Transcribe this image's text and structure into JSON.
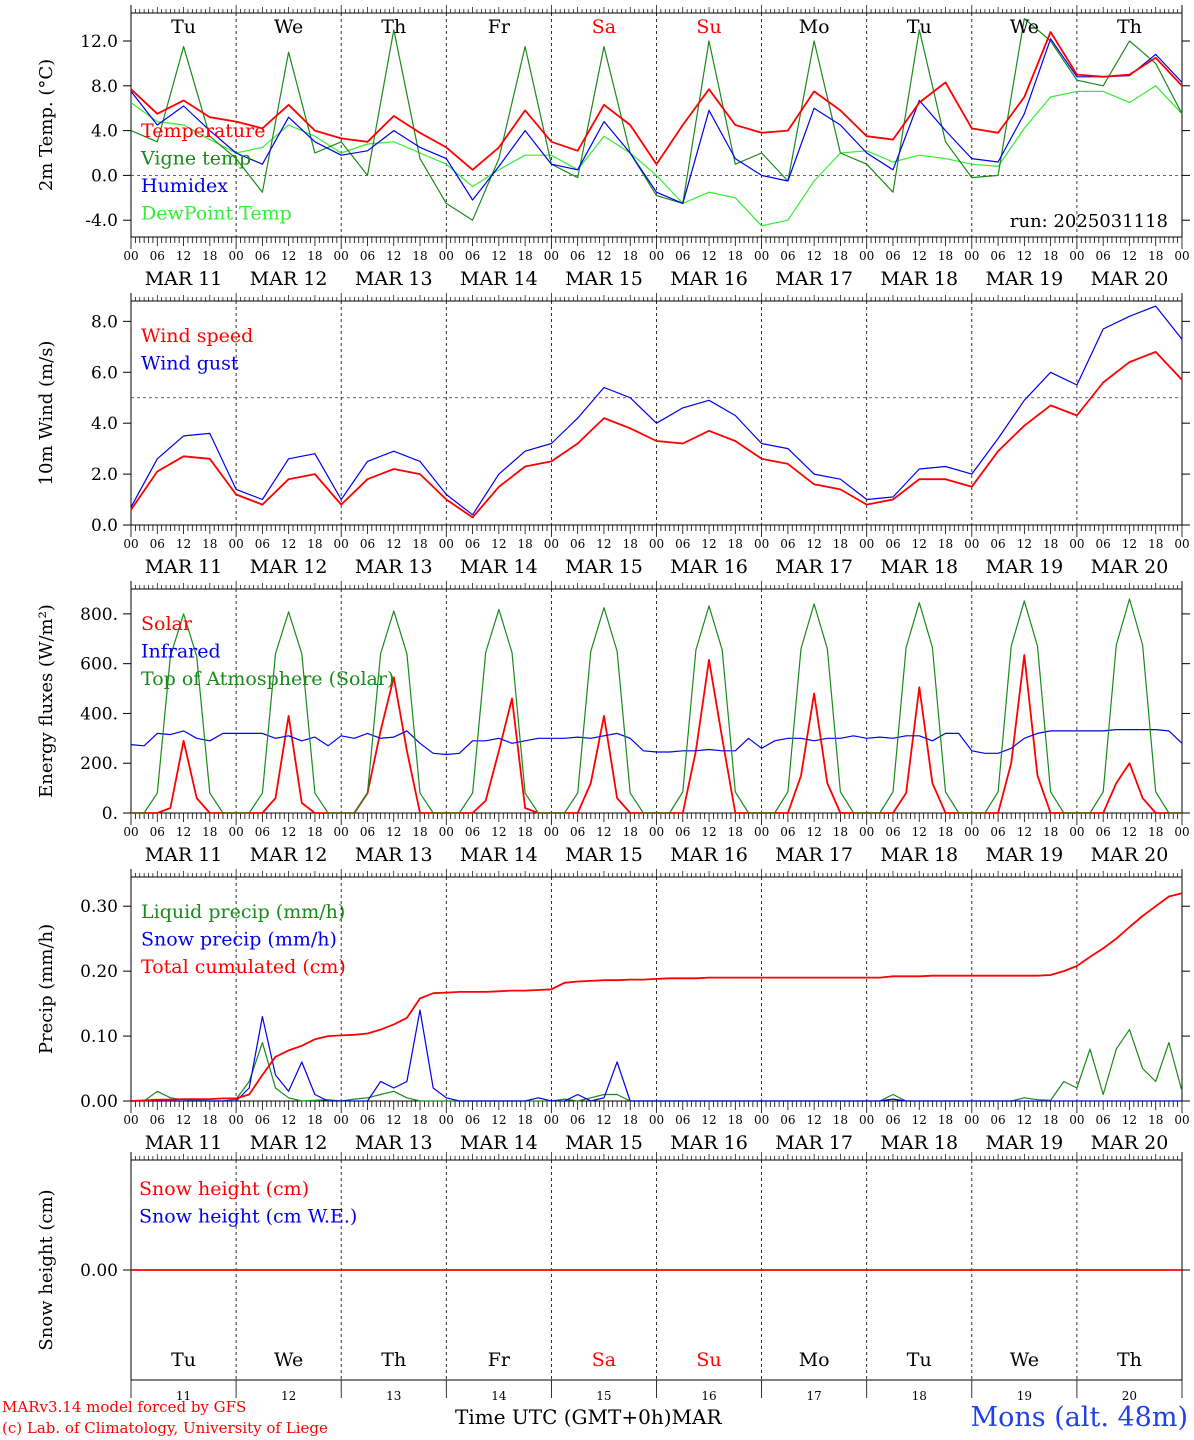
{
  "colors": {
    "red": "#ff0000",
    "dark_green": "#1a8a1a",
    "blue": "#0000ee",
    "light_green": "#33ee33",
    "weekend": "#ff0000",
    "site": "#1f3ff0"
  },
  "days": [
    "Tu",
    "We",
    "Th",
    "Fr",
    "Sa",
    "Su",
    "Mo",
    "Tu",
    "We",
    "Th"
  ],
  "day_is_weekend": [
    false,
    false,
    false,
    false,
    true,
    true,
    false,
    false,
    false,
    false
  ],
  "dates": [
    "MAR 11",
    "MAR 12",
    "MAR 13",
    "MAR 14",
    "MAR 15",
    "MAR 16",
    "MAR 17",
    "MAR 18",
    "MAR 19",
    "MAR 20"
  ],
  "day_numbers": [
    "11",
    "12",
    "13",
    "14",
    "15",
    "16",
    "17",
    "18",
    "19",
    "20"
  ],
  "hour_ticks": [
    "00",
    "06",
    "12",
    "18"
  ],
  "hour_end": "00",
  "footer": {
    "model": "MARv3.14 model forced by GFS",
    "lab": "(c) Lab. of Climatology, University of Liege",
    "time_label": "Time UTC (GMT+0h)",
    "month": "MAR",
    "site": "Mons (alt. 48m)"
  },
  "chart_data": [
    {
      "type": "line",
      "ylabel": "2m Temp. (°C)",
      "ylim": [
        -5.5,
        14.5
      ],
      "yticks": [
        -4,
        0,
        4,
        8,
        12
      ],
      "ytick_labels": [
        "-4.0",
        "0.0",
        "4.0",
        "8.0",
        "12.0"
      ],
      "reference_line": 0,
      "show_day_names": true,
      "annotation": "run: 2025031118",
      "x_hours": [
        0,
        6,
        12,
        18,
        24,
        30,
        36,
        42,
        48,
        54,
        60,
        66,
        72,
        78,
        84,
        90,
        96,
        102,
        108,
        114,
        120,
        126,
        132,
        138,
        144,
        150,
        156,
        162,
        168,
        174,
        180,
        186,
        192,
        198,
        204,
        210,
        216,
        222,
        228,
        234,
        240
      ],
      "series": [
        {
          "name": "Temperature",
          "color": "red",
          "values": [
            7.7,
            5.5,
            6.7,
            5.2,
            4.8,
            4.2,
            6.3,
            4.0,
            3.3,
            3.0,
            5.3,
            3.8,
            2.5,
            0.5,
            2.5,
            5.8,
            3.0,
            2.2,
            6.3,
            4.5,
            1.0,
            4.5,
            7.7,
            4.5,
            3.8,
            4.0,
            7.5,
            5.8,
            3.5,
            3.2,
            6.5,
            8.3,
            4.2,
            3.8,
            7.0,
            12.8,
            9.0,
            8.8,
            9.0,
            10.5,
            8.0
          ]
        },
        {
          "name": "Vigne temp",
          "color": "dark_green",
          "values": [
            4.0,
            3.0,
            11.5,
            3.5,
            1.5,
            -1.5,
            11.0,
            2.0,
            3.0,
            0.0,
            13.0,
            1.5,
            -2.5,
            -4.0,
            1.5,
            11.5,
            1.0,
            -0.2,
            11.5,
            2.0,
            -1.8,
            -2.5,
            12.0,
            1.0,
            2.0,
            -0.5,
            12.0,
            2.0,
            1.0,
            -1.5,
            13.0,
            3.0,
            -0.2,
            0.0,
            14.0,
            12.0,
            8.5,
            8.0,
            12.0,
            10.0,
            5.5
          ]
        },
        {
          "name": "Humidex",
          "color": "blue",
          "values": [
            7.5,
            4.5,
            6.2,
            4.0,
            2.0,
            1.0,
            5.2,
            3.0,
            1.8,
            2.2,
            4.0,
            2.5,
            1.5,
            -2.2,
            0.8,
            4.0,
            1.0,
            0.5,
            4.8,
            2.0,
            -1.5,
            -2.5,
            5.8,
            1.5,
            0.0,
            -0.5,
            6.0,
            4.5,
            2.0,
            0.5,
            6.7,
            4.0,
            1.5,
            1.2,
            5.5,
            12.2,
            8.8,
            8.8,
            8.9,
            10.8,
            8.3
          ]
        },
        {
          "name": "DewPoint Temp",
          "color": "light_green",
          "values": [
            6.5,
            4.8,
            4.5,
            3.2,
            2.0,
            2.5,
            4.5,
            3.5,
            2.0,
            2.8,
            3.0,
            2.0,
            1.0,
            -1.0,
            0.5,
            1.8,
            1.8,
            0.5,
            3.5,
            2.0,
            0.0,
            -2.5,
            -1.5,
            -2.0,
            -4.5,
            -4.0,
            -0.5,
            2.0,
            2.2,
            1.2,
            1.8,
            1.5,
            1.0,
            0.8,
            4.2,
            7.0,
            7.5,
            7.5,
            6.5,
            8.0,
            5.5
          ]
        }
      ]
    },
    {
      "type": "line",
      "ylabel": "10m Wind (m/s)",
      "ylim": [
        0,
        8.8
      ],
      "yticks": [
        0,
        2,
        4,
        6,
        8
      ],
      "ytick_labels": [
        "0.0",
        "2.0",
        "4.0",
        "6.0",
        "8.0"
      ],
      "reference_line": 5,
      "x_hours": [
        0,
        6,
        12,
        18,
        24,
        30,
        36,
        42,
        48,
        54,
        60,
        66,
        72,
        78,
        84,
        90,
        96,
        102,
        108,
        114,
        120,
        126,
        132,
        138,
        144,
        150,
        156,
        162,
        168,
        174,
        180,
        186,
        192,
        198,
        204,
        210,
        216,
        222,
        228,
        234,
        240
      ],
      "series": [
        {
          "name": "Wind speed",
          "color": "red",
          "values": [
            0.6,
            2.1,
            2.7,
            2.6,
            1.2,
            0.8,
            1.8,
            2.0,
            0.8,
            1.8,
            2.2,
            2.0,
            1.0,
            0.3,
            1.5,
            2.3,
            2.5,
            3.2,
            4.2,
            3.8,
            3.3,
            3.2,
            3.7,
            3.3,
            2.6,
            2.4,
            1.6,
            1.4,
            0.8,
            1.0,
            1.8,
            1.8,
            1.5,
            2.9,
            3.9,
            4.7,
            4.3,
            5.6,
            6.4,
            6.8,
            5.7
          ]
        },
        {
          "name": "Wind gust",
          "color": "blue",
          "values": [
            0.7,
            2.6,
            3.5,
            3.6,
            1.4,
            1.0,
            2.6,
            2.8,
            1.0,
            2.5,
            2.9,
            2.5,
            1.2,
            0.4,
            2.0,
            2.9,
            3.2,
            4.2,
            5.4,
            5.0,
            4.0,
            4.6,
            4.9,
            4.3,
            3.2,
            3.0,
            2.0,
            1.8,
            1.0,
            1.1,
            2.2,
            2.3,
            2.0,
            3.4,
            4.9,
            6.0,
            5.5,
            7.7,
            8.2,
            8.6,
            7.3
          ]
        }
      ]
    },
    {
      "type": "line",
      "ylabel": "Energy fluxes (W/m²)",
      "ylim": [
        0,
        900
      ],
      "yticks": [
        0,
        200,
        400,
        600,
        800
      ],
      "ytick_labels": [
        "0.",
        "200.",
        "400.",
        "600.",
        "800."
      ],
      "x_hours": [
        0,
        3,
        6,
        9,
        12,
        15,
        18,
        21,
        24,
        27,
        30,
        33,
        36,
        39,
        42,
        45,
        48,
        51,
        54,
        57,
        60,
        63,
        66,
        69,
        72,
        75,
        78,
        81,
        84,
        87,
        90,
        93,
        96,
        99,
        102,
        105,
        108,
        111,
        114,
        117,
        120,
        123,
        126,
        129,
        132,
        135,
        138,
        141,
        144,
        147,
        150,
        153,
        156,
        159,
        162,
        165,
        168,
        171,
        174,
        177,
        180,
        183,
        186,
        189,
        192,
        195,
        198,
        201,
        204,
        207,
        210,
        213,
        216,
        219,
        222,
        225,
        228,
        231,
        234,
        237,
        240
      ],
      "series": [
        {
          "name": "Solar",
          "color": "red",
          "values": [
            0,
            0,
            0,
            20,
            290,
            60,
            0,
            0,
            0,
            0,
            0,
            60,
            390,
            40,
            0,
            0,
            0,
            0,
            80,
            330,
            545,
            250,
            0,
            0,
            0,
            0,
            0,
            50,
            250,
            460,
            20,
            0,
            0,
            0,
            0,
            120,
            390,
            60,
            0,
            0,
            0,
            0,
            0,
            250,
            615,
            300,
            0,
            0,
            0,
            0,
            0,
            150,
            480,
            120,
            0,
            0,
            0,
            0,
            0,
            80,
            505,
            120,
            0,
            0,
            0,
            0,
            0,
            200,
            635,
            150,
            0,
            0,
            0,
            0,
            0,
            120,
            200,
            60,
            0,
            0,
            0
          ]
        },
        {
          "name": "Infrared",
          "color": "blue",
          "values": [
            275,
            270,
            320,
            315,
            330,
            300,
            290,
            320,
            320,
            320,
            320,
            300,
            310,
            290,
            305,
            270,
            310,
            300,
            320,
            300,
            305,
            330,
            280,
            240,
            235,
            240,
            290,
            290,
            300,
            280,
            290,
            300,
            300,
            300,
            305,
            300,
            310,
            320,
            300,
            250,
            245,
            245,
            250,
            250,
            255,
            250,
            250,
            300,
            260,
            290,
            300,
            300,
            290,
            300,
            300,
            310,
            300,
            305,
            300,
            310,
            310,
            290,
            320,
            320,
            250,
            240,
            240,
            260,
            300,
            320,
            330,
            330,
            330,
            330,
            330,
            335,
            335,
            335,
            335,
            330,
            280
          ]
        },
        {
          "name": "Top of Atmosphere (Solar)",
          "color": "dark_green",
          "values": [
            0,
            0,
            80,
            630,
            800,
            630,
            80,
            0,
            0,
            0,
            80,
            640,
            808,
            640,
            80,
            0,
            0,
            0,
            80,
            640,
            812,
            640,
            80,
            0,
            0,
            0,
            80,
            645,
            818,
            645,
            80,
            0,
            0,
            0,
            80,
            650,
            825,
            650,
            80,
            0,
            0,
            0,
            85,
            655,
            832,
            655,
            85,
            0,
            0,
            0,
            85,
            660,
            840,
            660,
            85,
            0,
            0,
            0,
            85,
            665,
            845,
            665,
            85,
            0,
            0,
            0,
            85,
            670,
            852,
            670,
            85,
            0,
            0,
            0,
            85,
            675,
            860,
            675,
            85,
            0,
            0
          ]
        }
      ]
    },
    {
      "type": "line",
      "ylabel": "Precip (mm/h)",
      "ylim": [
        0,
        0.345
      ],
      "yticks": [
        0,
        0.1,
        0.2,
        0.3
      ],
      "ytick_labels": [
        "0.00",
        "0.10",
        "0.20",
        "0.30"
      ],
      "x_hours": [
        0,
        3,
        6,
        9,
        12,
        15,
        18,
        21,
        24,
        27,
        30,
        33,
        36,
        39,
        42,
        45,
        48,
        51,
        54,
        57,
        60,
        63,
        66,
        69,
        72,
        75,
        78,
        81,
        84,
        87,
        90,
        93,
        96,
        99,
        102,
        105,
        108,
        111,
        114,
        117,
        120,
        123,
        126,
        129,
        132,
        135,
        138,
        141,
        144,
        147,
        150,
        153,
        156,
        159,
        162,
        165,
        168,
        171,
        174,
        177,
        180,
        183,
        186,
        189,
        192,
        195,
        198,
        201,
        204,
        207,
        210,
        213,
        216,
        219,
        222,
        225,
        228,
        231,
        234,
        237,
        240
      ],
      "series": [
        {
          "name": "Liquid precip (mm/h)",
          "color": "dark_green",
          "values": [
            0,
            0,
            0.015,
            0.005,
            0.002,
            0.001,
            0,
            0,
            0.003,
            0.03,
            0.09,
            0.02,
            0.005,
            0,
            0.001,
            0.002,
            0,
            0.003,
            0.005,
            0.01,
            0.015,
            0.005,
            0,
            0,
            0,
            0,
            0,
            0,
            0,
            0,
            0,
            0,
            0,
            0.003,
            0,
            0.005,
            0.01,
            0.01,
            0,
            0,
            0,
            0,
            0,
            0,
            0,
            0,
            0,
            0,
            0,
            0,
            0,
            0,
            0,
            0,
            0,
            0,
            0,
            0,
            0.01,
            0,
            0,
            0,
            0,
            0,
            0,
            0,
            0,
            0,
            0.005,
            0.002,
            0.001,
            0.03,
            0.02,
            0.08,
            0.01,
            0.08,
            0.11,
            0.05,
            0.03,
            0.09,
            0.015
          ]
        },
        {
          "name": "Snow precip (mm/h)",
          "color": "blue",
          "values": [
            0,
            0,
            0,
            0,
            0,
            0,
            0,
            0,
            0,
            0.02,
            0.13,
            0.04,
            0.015,
            0.06,
            0.01,
            0,
            0,
            0,
            0,
            0.03,
            0.02,
            0.03,
            0.14,
            0.02,
            0.005,
            0,
            0,
            0,
            0,
            0,
            0,
            0.005,
            0,
            0,
            0.01,
            0,
            0.005,
            0.06,
            0,
            0,
            0,
            0,
            0,
            0,
            0,
            0,
            0,
            0,
            0,
            0,
            0,
            0,
            0,
            0,
            0,
            0,
            0,
            0,
            0.003,
            0,
            0,
            0,
            0,
            0,
            0,
            0,
            0,
            0,
            0,
            0,
            0,
            0,
            0,
            0,
            0,
            0,
            0,
            0,
            0,
            0,
            0
          ]
        },
        {
          "name": "Total cumulated (cm)",
          "color": "red",
          "values": [
            0,
            0.001,
            0.002,
            0.002,
            0.003,
            0.003,
            0.003,
            0.004,
            0.004,
            0.01,
            0.04,
            0.068,
            0.078,
            0.085,
            0.095,
            0.1,
            0.101,
            0.102,
            0.104,
            0.11,
            0.118,
            0.128,
            0.158,
            0.166,
            0.167,
            0.168,
            0.168,
            0.168,
            0.169,
            0.17,
            0.17,
            0.171,
            0.172,
            0.182,
            0.184,
            0.185,
            0.186,
            0.186,
            0.187,
            0.187,
            0.188,
            0.189,
            0.189,
            0.189,
            0.19,
            0.19,
            0.19,
            0.19,
            0.19,
            0.19,
            0.19,
            0.19,
            0.19,
            0.19,
            0.19,
            0.19,
            0.19,
            0.19,
            0.192,
            0.192,
            0.192,
            0.193,
            0.193,
            0.193,
            0.193,
            0.193,
            0.193,
            0.193,
            0.193,
            0.193,
            0.194,
            0.2,
            0.208,
            0.222,
            0.235,
            0.25,
            0.268,
            0.285,
            0.3,
            0.315,
            0.32
          ]
        }
      ]
    },
    {
      "type": "line",
      "ylabel": "Snow height (cm)",
      "ylim": [
        -1,
        1
      ],
      "yticks": [
        0
      ],
      "ytick_labels": [
        "0.00"
      ],
      "show_day_names": true,
      "x_hours": [
        0,
        240
      ],
      "series": [
        {
          "name": "Snow height (cm)",
          "color": "red",
          "values": [
            0,
            0
          ]
        },
        {
          "name": "Snow height (cm W.E.)",
          "color": "blue",
          "legend_only": true,
          "values": [
            0,
            0
          ]
        }
      ]
    }
  ]
}
